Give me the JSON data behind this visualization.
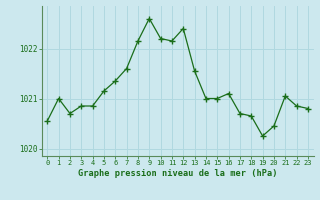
{
  "x": [
    0,
    1,
    2,
    3,
    4,
    5,
    6,
    7,
    8,
    9,
    10,
    11,
    12,
    13,
    14,
    15,
    16,
    17,
    18,
    19,
    20,
    21,
    22,
    23
  ],
  "y": [
    1020.55,
    1021.0,
    1020.7,
    1020.85,
    1020.85,
    1021.15,
    1021.35,
    1021.6,
    1022.15,
    1022.6,
    1022.2,
    1022.15,
    1022.4,
    1021.55,
    1021.0,
    1021.0,
    1021.1,
    1020.7,
    1020.65,
    1020.25,
    1020.45,
    1021.05,
    1020.85,
    1020.8
  ],
  "line_color": "#1a6e1a",
  "marker_color": "#1a6e1a",
  "bg_color": "#cce8ee",
  "grid_color": "#b0d8e0",
  "border_color": "#5a8a5a",
  "tick_color": "#1a6e1a",
  "xlabel_color": "#1a6e1a",
  "title": "Graphe pression niveau de la mer (hPa)",
  "yticks": [
    1020,
    1021,
    1022
  ],
  "ylim": [
    1019.85,
    1022.85
  ],
  "xlim": [
    -0.5,
    23.5
  ],
  "xtick_labels": [
    "0",
    "1",
    "2",
    "3",
    "4",
    "5",
    "6",
    "7",
    "8",
    "9",
    "10",
    "11",
    "12",
    "13",
    "14",
    "15",
    "16",
    "17",
    "18",
    "19",
    "20",
    "21",
    "22",
    "23"
  ]
}
